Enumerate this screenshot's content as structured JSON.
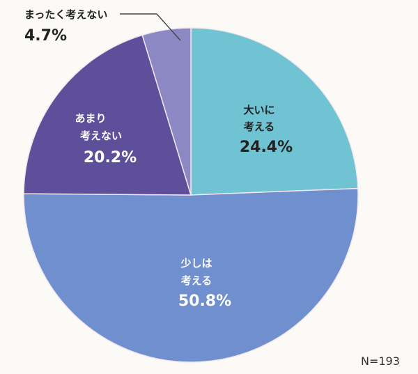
{
  "chart_data": {
    "type": "pie",
    "slices": [
      {
        "label_lines": [
          "大いに",
          "考える"
        ],
        "value": 24.4,
        "value_text": "24.4%",
        "color": "#6fc3d3"
      },
      {
        "label_lines": [
          "少しは",
          "考える"
        ],
        "value": 50.8,
        "value_text": "50.8%",
        "color": "#6f8fcf"
      },
      {
        "label_lines": [
          "あまり",
          "考えない"
        ],
        "value": 20.2,
        "value_text": "20.2%",
        "color": "#5d4f9a"
      },
      {
        "label_lines": [
          "まったく考えない"
        ],
        "value": 4.7,
        "value_text": "4.7%",
        "color": "#8b88c4"
      }
    ],
    "sample_note": "N=193",
    "start": "12 o'clock, clockwise",
    "legend": "none (labels inside slices)"
  }
}
